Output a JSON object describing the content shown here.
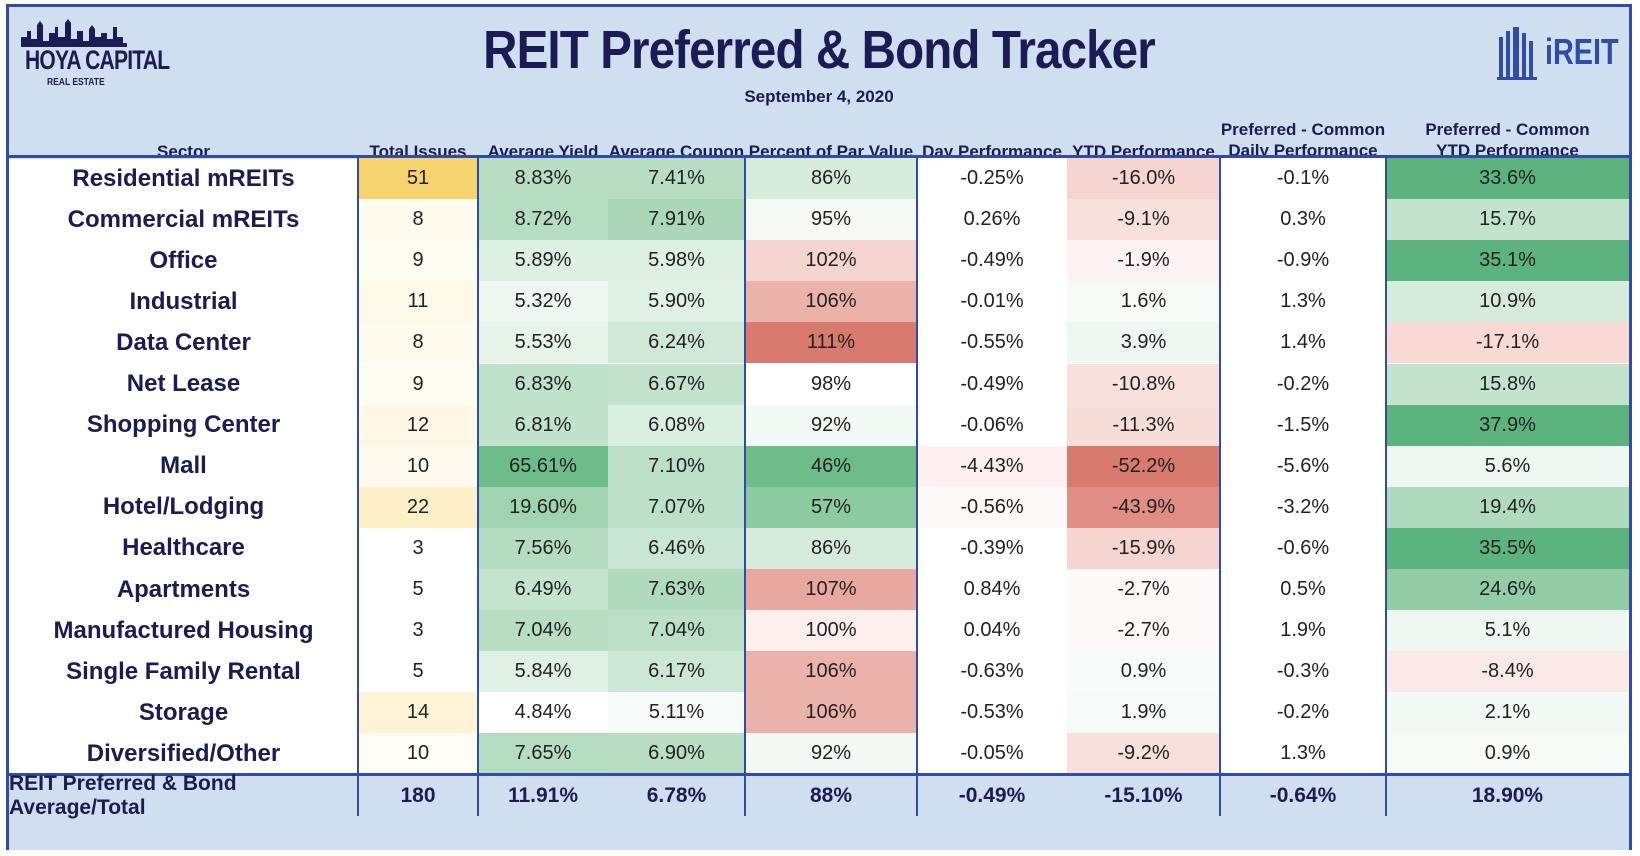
{
  "header": {
    "title": "REIT Preferred & Bond Tracker",
    "date": "September 4, 2020",
    "logo_left_brand": "HOYA CAPITAL",
    "logo_left_sub": "REAL ESTATE",
    "logo_right": "iREIT"
  },
  "colors": {
    "header_bg": "#cfdff0",
    "border": "#2f4da8",
    "title": "#1b1b55",
    "green_strong": "#5db37e",
    "red_strong": "#d9776a",
    "yellow_strong": "#f7d26e"
  },
  "chart_data": {
    "type": "table",
    "title": "REIT Preferred & Bond Tracker",
    "subtitle": "September 4, 2020",
    "columns": [
      "Sector",
      "Total Issues",
      "Average Yield",
      "Average Coupon",
      "Percent of Par Value",
      "Day Performance",
      "YTD Performance",
      "Preferred - Common Daily Performance",
      "Preferred - Common YTD Performance"
    ],
    "column_lines": [
      [
        "Sector"
      ],
      [
        "Total Issues"
      ],
      [
        "Average Yield"
      ],
      [
        "Average Coupon"
      ],
      [
        "Percent of Par Value"
      ],
      [
        "Day Performance"
      ],
      [
        "YTD Performance"
      ],
      [
        "Preferred - Common",
        "Daily Performance"
      ],
      [
        "Preferred - Common",
        "YTD Performance"
      ]
    ],
    "rows": [
      [
        "Residential mREITs",
        "51",
        "8.83%",
        "7.41%",
        "86%",
        "-0.25%",
        "-16.0%",
        "-0.1%",
        "33.6%"
      ],
      [
        "Commercial mREITs",
        "8",
        "8.72%",
        "7.91%",
        "95%",
        "0.26%",
        "-9.1%",
        "0.3%",
        "15.7%"
      ],
      [
        "Office",
        "9",
        "5.89%",
        "5.98%",
        "102%",
        "-0.49%",
        "-1.9%",
        "-0.9%",
        "35.1%"
      ],
      [
        "Industrial",
        "11",
        "5.32%",
        "5.90%",
        "106%",
        "-0.01%",
        "1.6%",
        "1.3%",
        "10.9%"
      ],
      [
        "Data Center",
        "8",
        "5.53%",
        "6.24%",
        "111%",
        "-0.55%",
        "3.9%",
        "1.4%",
        "-17.1%"
      ],
      [
        "Net Lease",
        "9",
        "6.83%",
        "6.67%",
        "98%",
        "-0.49%",
        "-10.8%",
        "-0.2%",
        "15.8%"
      ],
      [
        "Shopping Center",
        "12",
        "6.81%",
        "6.08%",
        "92%",
        "-0.06%",
        "-11.3%",
        "-1.5%",
        "37.9%"
      ],
      [
        "Mall",
        "10",
        "65.61%",
        "7.10%",
        "46%",
        "-4.43%",
        "-52.2%",
        "-5.6%",
        "5.6%"
      ],
      [
        "Hotel/Lodging",
        "22",
        "19.60%",
        "7.07%",
        "57%",
        "-0.56%",
        "-43.9%",
        "-3.2%",
        "19.4%"
      ],
      [
        "Healthcare",
        "3",
        "7.56%",
        "6.46%",
        "86%",
        "-0.39%",
        "-15.9%",
        "-0.6%",
        "35.5%"
      ],
      [
        "Apartments",
        "5",
        "6.49%",
        "7.63%",
        "107%",
        "0.84%",
        "-2.7%",
        "0.5%",
        "24.6%"
      ],
      [
        "Manufactured Housing",
        "3",
        "7.04%",
        "7.04%",
        "100%",
        "0.04%",
        "-2.7%",
        "1.9%",
        "5.1%"
      ],
      [
        "Single Family Rental",
        "5",
        "5.84%",
        "6.17%",
        "106%",
        "-0.63%",
        "0.9%",
        "-0.3%",
        "-8.4%"
      ],
      [
        "Storage",
        "14",
        "4.84%",
        "5.11%",
        "106%",
        "-0.53%",
        "1.9%",
        "-0.2%",
        "2.1%"
      ],
      [
        "Diversified/Other",
        "10",
        "7.65%",
        "6.90%",
        "92%",
        "-0.05%",
        "-9.2%",
        "1.3%",
        "0.9%"
      ]
    ],
    "total_row": [
      "REIT Preferred & Bond Average/Total",
      "180",
      "11.91%",
      "6.78%",
      "88%",
      "-0.49%",
      "-15.10%",
      "-0.64%",
      "18.90%"
    ],
    "cell_colors": [
      [
        null,
        "#f7d370",
        "#b7dec3",
        "#b7dec3",
        "#d5ecdb",
        "#ffffff",
        "#f6d4cf",
        "#ffffff",
        "#5db37e"
      ],
      [
        null,
        "#fffbee",
        "#b5ddc2",
        "#a9d7b7",
        "#f5faf6",
        "#ffffff",
        "#f8e0dc",
        "#ffffff",
        "#c3e3cd"
      ],
      [
        null,
        "#fffcf2",
        "#ddf0e2",
        "#ddf0e2",
        "#f6d4cf",
        "#ffffff",
        "#fdf3f2",
        "#ffffff",
        "#5db37e"
      ],
      [
        null,
        "#fff9ea",
        "#eef8f1",
        "#e0f1e5",
        "#ebb2aa",
        "#ffffff",
        "#f6fbf7",
        "#ffffff",
        "#d5ecdb"
      ],
      [
        null,
        "#fffbee",
        "#e7f4ea",
        "#cfe9d6",
        "#d87a6d",
        "#ffffff",
        "#eef8f1",
        "#ffffff",
        "#f8d9d4"
      ],
      [
        null,
        "#fffcf2",
        "#bfe2ca",
        "#c3e3cd",
        "#ffffff",
        "#ffffff",
        "#f8e0dc",
        "#ffffff",
        "#c3e3cd"
      ],
      [
        null,
        "#fff8e6",
        "#c1e2cb",
        "#d9efe0",
        "#f3f9f4",
        "#ffffff",
        "#f8ded9",
        "#ffffff",
        "#5db37e"
      ],
      [
        null,
        "#fffaee",
        "#6ebc89",
        "#bce0c7",
        "#6ebc89",
        "#fdf0ee",
        "#d87a6d",
        "#ffffff",
        "#edf7f0"
      ],
      [
        null,
        "#fdefc6",
        "#a0d3b0",
        "#bde1c8",
        "#8ccaa0",
        "#fefafa",
        "#e08e83",
        "#ffffff",
        "#b0dabd"
      ],
      [
        null,
        "#ffffff",
        "#b3dcc0",
        "#c8e6d1",
        "#d5ecdb",
        "#ffffff",
        "#f6d4cf",
        "#ffffff",
        "#5db37e"
      ],
      [
        null,
        "#ffffff",
        "#c5e4ce",
        "#b0dabd",
        "#e8a79f",
        "#ffffff",
        "#fefafa",
        "#ffffff",
        "#91cca5"
      ],
      [
        null,
        "#ffffff",
        "#b7dec3",
        "#bce0c7",
        "#fcefee",
        "#ffffff",
        "#fefafa",
        "#ffffff",
        "#eef8f1"
      ],
      [
        null,
        "#ffffff",
        "#dff1e4",
        "#cce8d4",
        "#ebb2aa",
        "#ffffff",
        "#f9fcfa",
        "#ffffff",
        "#fbe9e6"
      ],
      [
        null,
        "#fff4d6",
        "#ffffff",
        "#f6fbf7",
        "#ebb2aa",
        "#ffffff",
        "#f6fbf7",
        "#ffffff",
        "#f3f9f4"
      ],
      [
        null,
        "#fffdf6",
        "#b5ddc2",
        "#b7dec3",
        "#f3f9f4",
        "#ffffff",
        "#f8e0dc",
        "#ffffff",
        "#f8fcf9"
      ]
    ]
  }
}
